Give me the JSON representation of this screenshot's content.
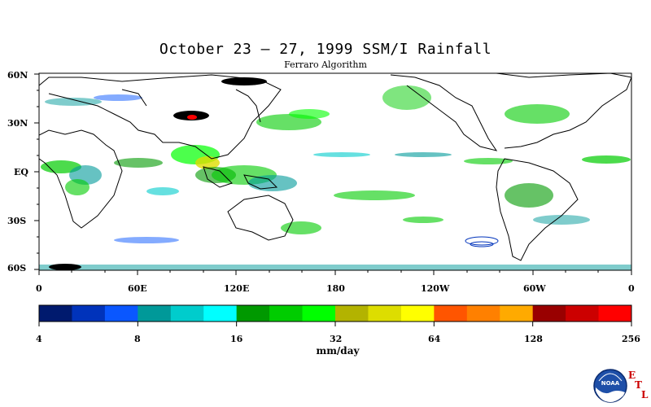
{
  "title": "October 23 – 27, 1999 SSM/I Rainfall",
  "subtitle": "Ferraro Algorithm",
  "lat_labels": [
    "60N",
    "30N",
    "EQ",
    "30S",
    "60S"
  ],
  "lon_labels": [
    "0",
    "60E",
    "120E",
    "180",
    "120W",
    "60W",
    "0"
  ],
  "colorbar": {
    "colors": [
      "#001a6e",
      "#0033bb",
      "#0a57ff",
      "#009999",
      "#00cccc",
      "#00ffff",
      "#009900",
      "#00cc00",
      "#00ff00",
      "#b3b300",
      "#dddd00",
      "#ffff00",
      "#ff5500",
      "#ff8000",
      "#ffaa00",
      "#990000",
      "#cc0000",
      "#ff0000"
    ],
    "tick_labels": [
      "4",
      "8",
      "16",
      "32",
      "64",
      "128",
      "256"
    ],
    "unit_label": "mm/day"
  },
  "logo": {
    "noaa_text": "NOAA",
    "etl_letters": [
      "E",
      "T",
      "L"
    ]
  }
}
